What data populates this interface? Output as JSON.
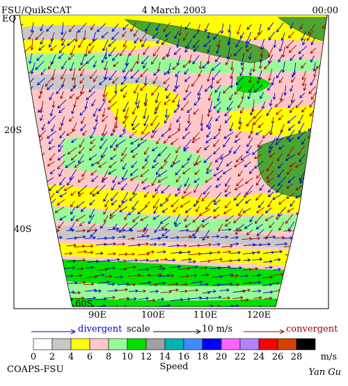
{
  "header": {
    "product": "FSU/QuikSCAT",
    "date": "4 March 2003",
    "time": "00:00"
  },
  "map": {
    "lat_labels": [
      "EQ",
      "20S",
      "40S",
      "60S"
    ],
    "lon_labels": [
      "90E",
      "100E",
      "110E",
      "120E"
    ]
  },
  "legend": {
    "divergent": "divergent",
    "scale": "scale",
    "scale_value": "10 m/s",
    "convergent": "convergent"
  },
  "colorbar": {
    "ticks": [
      0,
      2,
      4,
      6,
      8,
      10,
      12,
      14,
      16,
      18,
      20,
      22,
      24,
      26,
      28
    ],
    "unit": "m/s",
    "title": "Speed",
    "colors": [
      "#ffffff",
      "#c8c8c8",
      "#ffff00",
      "#ffc8c8",
      "#98fb98",
      "#00e000",
      "#a0a0a0",
      "#00b4b4",
      "#3c8cff",
      "#0000ff",
      "#ff64ff",
      "#b482ff",
      "#ff0000",
      "#d24100",
      "#000000"
    ]
  },
  "footer": {
    "left": "COAPS-FSU",
    "right": "Yan Gu"
  }
}
